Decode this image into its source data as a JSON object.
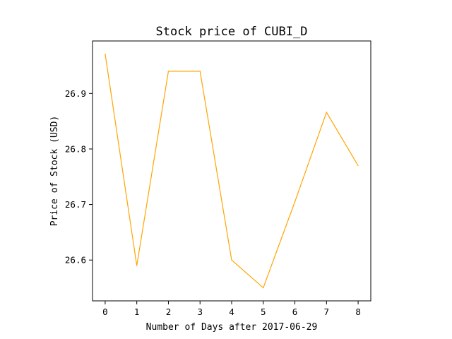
{
  "chart_data": {
    "type": "line",
    "title": "Stock price of CUBI_D",
    "xlabel": "Number of Days after 2017-06-29",
    "ylabel": "Price of Stock (USD)",
    "x": [
      0,
      1,
      2,
      3,
      4,
      5,
      6,
      7,
      8
    ],
    "series": [
      {
        "values": [
          26.971,
          26.59,
          26.94,
          26.94,
          26.6,
          26.55,
          26.705,
          26.866,
          26.77
        ],
        "color": "#ffa500"
      }
    ],
    "xlim": [
      -0.4,
      8.4
    ],
    "ylim": [
      26.5265,
      26.9945
    ],
    "x_ticks": [
      "0",
      "1",
      "2",
      "3",
      "4",
      "5",
      "6",
      "7",
      "8"
    ],
    "y_ticks": [
      "26.6",
      "26.7",
      "26.8",
      "26.9"
    ],
    "grid": false,
    "legend": "none"
  }
}
